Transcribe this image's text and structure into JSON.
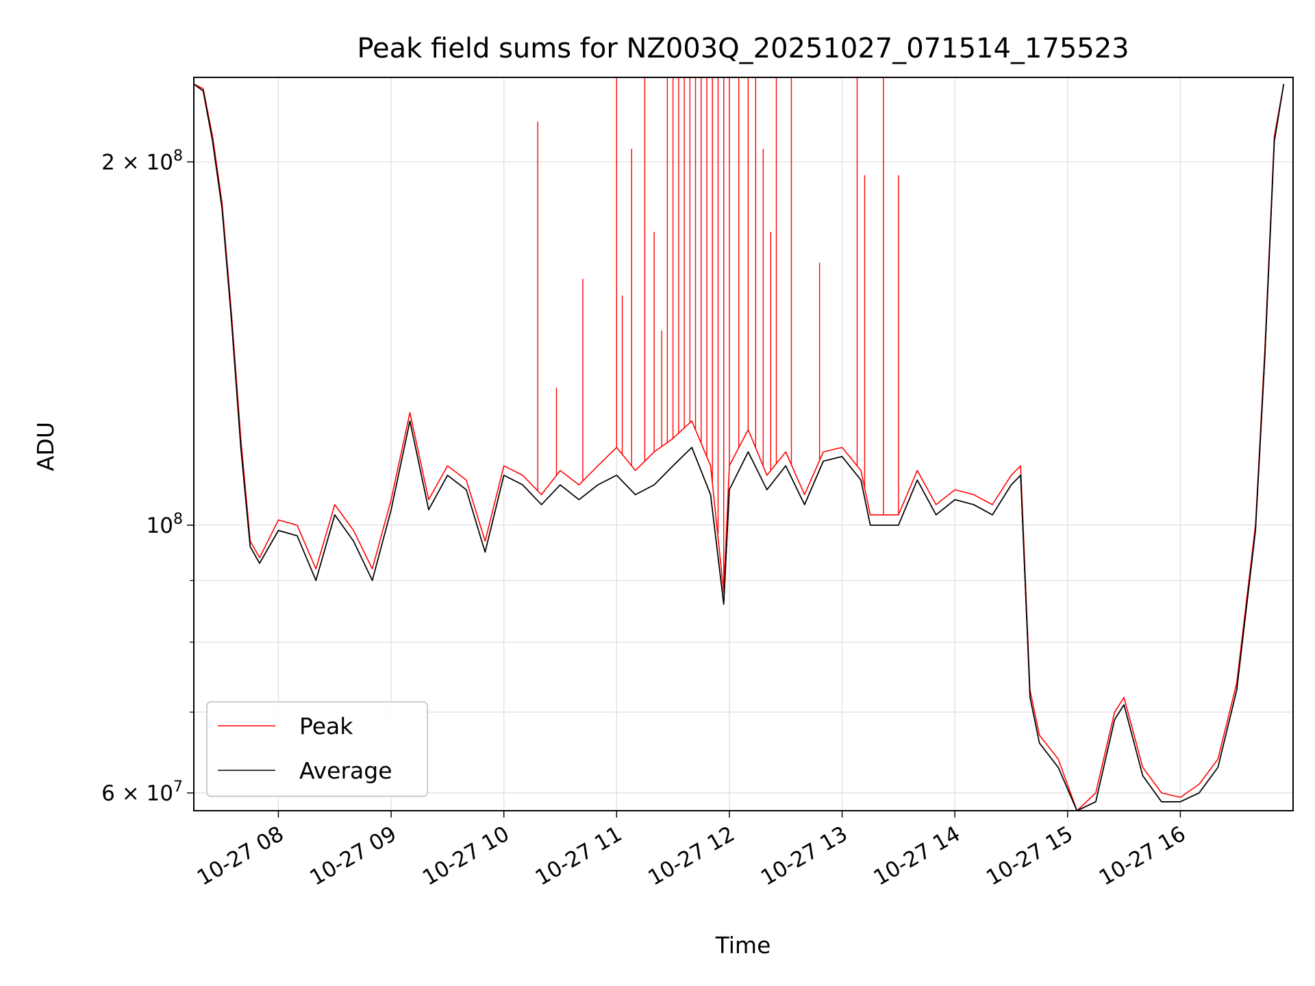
{
  "chart_data": {
    "type": "line",
    "title": "Peak field sums for NZ003Q_20251027_071514_175523",
    "xlabel": "Time",
    "ylabel": "ADU",
    "x_axis": {
      "kind": "time",
      "range": [
        "2025-10-27 07:15",
        "2025-10-27 17:00"
      ],
      "ticks": [
        {
          "value": "2025-10-27 08:00",
          "label": "10-27 08"
        },
        {
          "value": "2025-10-27 09:00",
          "label": "10-27 09"
        },
        {
          "value": "2025-10-27 10:00",
          "label": "10-27 10"
        },
        {
          "value": "2025-10-27 11:00",
          "label": "10-27 11"
        },
        {
          "value": "2025-10-27 12:00",
          "label": "10-27 12"
        },
        {
          "value": "2025-10-27 13:00",
          "label": "10-27 13"
        },
        {
          "value": "2025-10-27 14:00",
          "label": "10-27 14"
        },
        {
          "value": "2025-10-27 15:00",
          "label": "10-27 15"
        },
        {
          "value": "2025-10-27 16:00",
          "label": "10-27 16"
        }
      ]
    },
    "y_axis": {
      "scale": "log",
      "range": [
        58000000,
        235000000
      ],
      "major_ticks": [
        {
          "value": 200000000,
          "label": "2 × 10^8"
        },
        {
          "value": 100000000,
          "label": "10^8"
        },
        {
          "value": 60000000,
          "label": "6 × 10^7"
        }
      ],
      "minor_ticks": [
        70000000,
        80000000,
        90000000
      ]
    },
    "grid": true,
    "legend": {
      "position": "lower-left",
      "entries": [
        "Peak",
        "Average"
      ]
    },
    "series": [
      {
        "name": "Peak",
        "color": "#ff0000",
        "points": [
          [
            "07:15",
            232000000
          ],
          [
            "07:20",
            230000000
          ],
          [
            "07:25",
            210000000
          ],
          [
            "07:30",
            185000000
          ],
          [
            "07:35",
            150000000
          ],
          [
            "07:40",
            118000000
          ],
          [
            "07:45",
            97000000
          ],
          [
            "07:50",
            94000000
          ],
          [
            "08:00",
            101000000
          ],
          [
            "08:10",
            100000000
          ],
          [
            "08:20",
            92000000
          ],
          [
            "08:30",
            104000000
          ],
          [
            "08:40",
            99000000
          ],
          [
            "08:50",
            92000000
          ],
          [
            "09:00",
            105000000
          ],
          [
            "09:10",
            124000000
          ],
          [
            "09:20",
            105000000
          ],
          [
            "09:30",
            112000000
          ],
          [
            "09:40",
            109000000
          ],
          [
            "09:50",
            97000000
          ],
          [
            "10:00",
            112000000
          ],
          [
            "10:10",
            110000000
          ],
          [
            "10:20",
            106000000
          ],
          [
            "10:30",
            111000000
          ],
          [
            "10:40",
            108000000
          ],
          [
            "10:50",
            112000000
          ],
          [
            "11:00",
            116000000
          ],
          [
            "11:10",
            111000000
          ],
          [
            "11:20",
            115000000
          ],
          [
            "11:30",
            118000000
          ],
          [
            "11:40",
            122000000
          ],
          [
            "11:50",
            112000000
          ],
          [
            "11:57",
            88000000
          ],
          [
            "12:00",
            112000000
          ],
          [
            "12:10",
            120000000
          ],
          [
            "12:20",
            110000000
          ],
          [
            "12:30",
            115000000
          ],
          [
            "12:40",
            106000000
          ],
          [
            "12:50",
            115000000
          ],
          [
            "13:00",
            116000000
          ],
          [
            "13:10",
            111000000
          ],
          [
            "13:15",
            102000000
          ],
          [
            "13:30",
            102000000
          ],
          [
            "13:40",
            111000000
          ],
          [
            "13:50",
            104000000
          ],
          [
            "14:00",
            107000000
          ],
          [
            "14:10",
            106000000
          ],
          [
            "14:20",
            104000000
          ],
          [
            "14:30",
            110000000
          ],
          [
            "14:35",
            112000000
          ],
          [
            "14:40",
            73000000
          ],
          [
            "14:45",
            67000000
          ],
          [
            "14:55",
            64000000
          ],
          [
            "15:05",
            58000000
          ],
          [
            "15:15",
            60000000
          ],
          [
            "15:25",
            70000000
          ],
          [
            "15:30",
            72000000
          ],
          [
            "15:40",
            63000000
          ],
          [
            "15:50",
            60000000
          ],
          [
            "16:00",
            59500000
          ],
          [
            "16:10",
            61000000
          ],
          [
            "16:20",
            64000000
          ],
          [
            "16:30",
            74000000
          ],
          [
            "16:40",
            100000000
          ],
          [
            "16:45",
            140000000
          ],
          [
            "16:50",
            210000000
          ],
          [
            "16:55",
            232000000
          ]
        ],
        "spikes": [
          [
            "10:18",
            216000000
          ],
          [
            "10:28",
            130000000
          ],
          [
            "10:42",
            160000000
          ],
          [
            "11:00",
            235000000
          ],
          [
            "11:03",
            155000000
          ],
          [
            "11:08",
            205000000
          ],
          [
            "11:15",
            235000000
          ],
          [
            "11:20",
            175000000
          ],
          [
            "11:24",
            145000000
          ],
          [
            "11:27",
            235000000
          ],
          [
            "11:30",
            235000000
          ],
          [
            "11:33",
            235000000
          ],
          [
            "11:36",
            235000000
          ],
          [
            "11:39",
            235000000
          ],
          [
            "11:42",
            235000000
          ],
          [
            "11:45",
            235000000
          ],
          [
            "11:48",
            235000000
          ],
          [
            "11:51",
            235000000
          ],
          [
            "11:54",
            235000000
          ],
          [
            "11:57",
            235000000
          ],
          [
            "12:00",
            235000000
          ],
          [
            "12:05",
            235000000
          ],
          [
            "12:10",
            235000000
          ],
          [
            "12:14",
            235000000
          ],
          [
            "12:18",
            205000000
          ],
          [
            "12:22",
            175000000
          ],
          [
            "12:25",
            235000000
          ],
          [
            "12:33",
            235000000
          ],
          [
            "12:48",
            165000000
          ],
          [
            "13:08",
            235000000
          ],
          [
            "13:12",
            195000000
          ],
          [
            "13:22",
            235000000
          ],
          [
            "13:30",
            195000000
          ]
        ]
      },
      {
        "name": "Average",
        "color": "#000000",
        "points": [
          [
            "07:15",
            232000000
          ],
          [
            "07:20",
            229000000
          ],
          [
            "07:25",
            208000000
          ],
          [
            "07:30",
            183000000
          ],
          [
            "07:35",
            148000000
          ],
          [
            "07:40",
            116000000
          ],
          [
            "07:45",
            96000000
          ],
          [
            "07:50",
            93000000
          ],
          [
            "08:00",
            99000000
          ],
          [
            "08:10",
            98000000
          ],
          [
            "08:20",
            90000000
          ],
          [
            "08:30",
            102000000
          ],
          [
            "08:40",
            97000000
          ],
          [
            "08:50",
            90000000
          ],
          [
            "09:00",
            103000000
          ],
          [
            "09:10",
            122000000
          ],
          [
            "09:20",
            103000000
          ],
          [
            "09:30",
            110000000
          ],
          [
            "09:40",
            107000000
          ],
          [
            "09:50",
            95000000
          ],
          [
            "10:00",
            110000000
          ],
          [
            "10:10",
            108000000
          ],
          [
            "10:20",
            104000000
          ],
          [
            "10:30",
            108000000
          ],
          [
            "10:40",
            105000000
          ],
          [
            "10:50",
            108000000
          ],
          [
            "11:00",
            110000000
          ],
          [
            "11:10",
            106000000
          ],
          [
            "11:20",
            108000000
          ],
          [
            "11:30",
            112000000
          ],
          [
            "11:40",
            116000000
          ],
          [
            "11:50",
            106000000
          ],
          [
            "11:57",
            86000000
          ],
          [
            "12:00",
            107000000
          ],
          [
            "12:10",
            115000000
          ],
          [
            "12:20",
            107000000
          ],
          [
            "12:30",
            112000000
          ],
          [
            "12:40",
            104000000
          ],
          [
            "12:50",
            113000000
          ],
          [
            "13:00",
            114000000
          ],
          [
            "13:10",
            109000000
          ],
          [
            "13:15",
            100000000
          ],
          [
            "13:30",
            100000000
          ],
          [
            "13:40",
            109000000
          ],
          [
            "13:50",
            102000000
          ],
          [
            "14:00",
            105000000
          ],
          [
            "14:10",
            104000000
          ],
          [
            "14:20",
            102000000
          ],
          [
            "14:30",
            108000000
          ],
          [
            "14:35",
            110000000
          ],
          [
            "14:40",
            72000000
          ],
          [
            "14:45",
            66000000
          ],
          [
            "14:55",
            63000000
          ],
          [
            "15:05",
            57500000
          ],
          [
            "15:15",
            59000000
          ],
          [
            "15:25",
            69000000
          ],
          [
            "15:30",
            71000000
          ],
          [
            "15:40",
            62000000
          ],
          [
            "15:50",
            59000000
          ],
          [
            "16:00",
            59000000
          ],
          [
            "16:10",
            60000000
          ],
          [
            "16:20",
            63000000
          ],
          [
            "16:30",
            73000000
          ],
          [
            "16:40",
            99000000
          ],
          [
            "16:45",
            138000000
          ],
          [
            "16:50",
            208000000
          ],
          [
            "16:55",
            232000000
          ]
        ]
      }
    ]
  }
}
